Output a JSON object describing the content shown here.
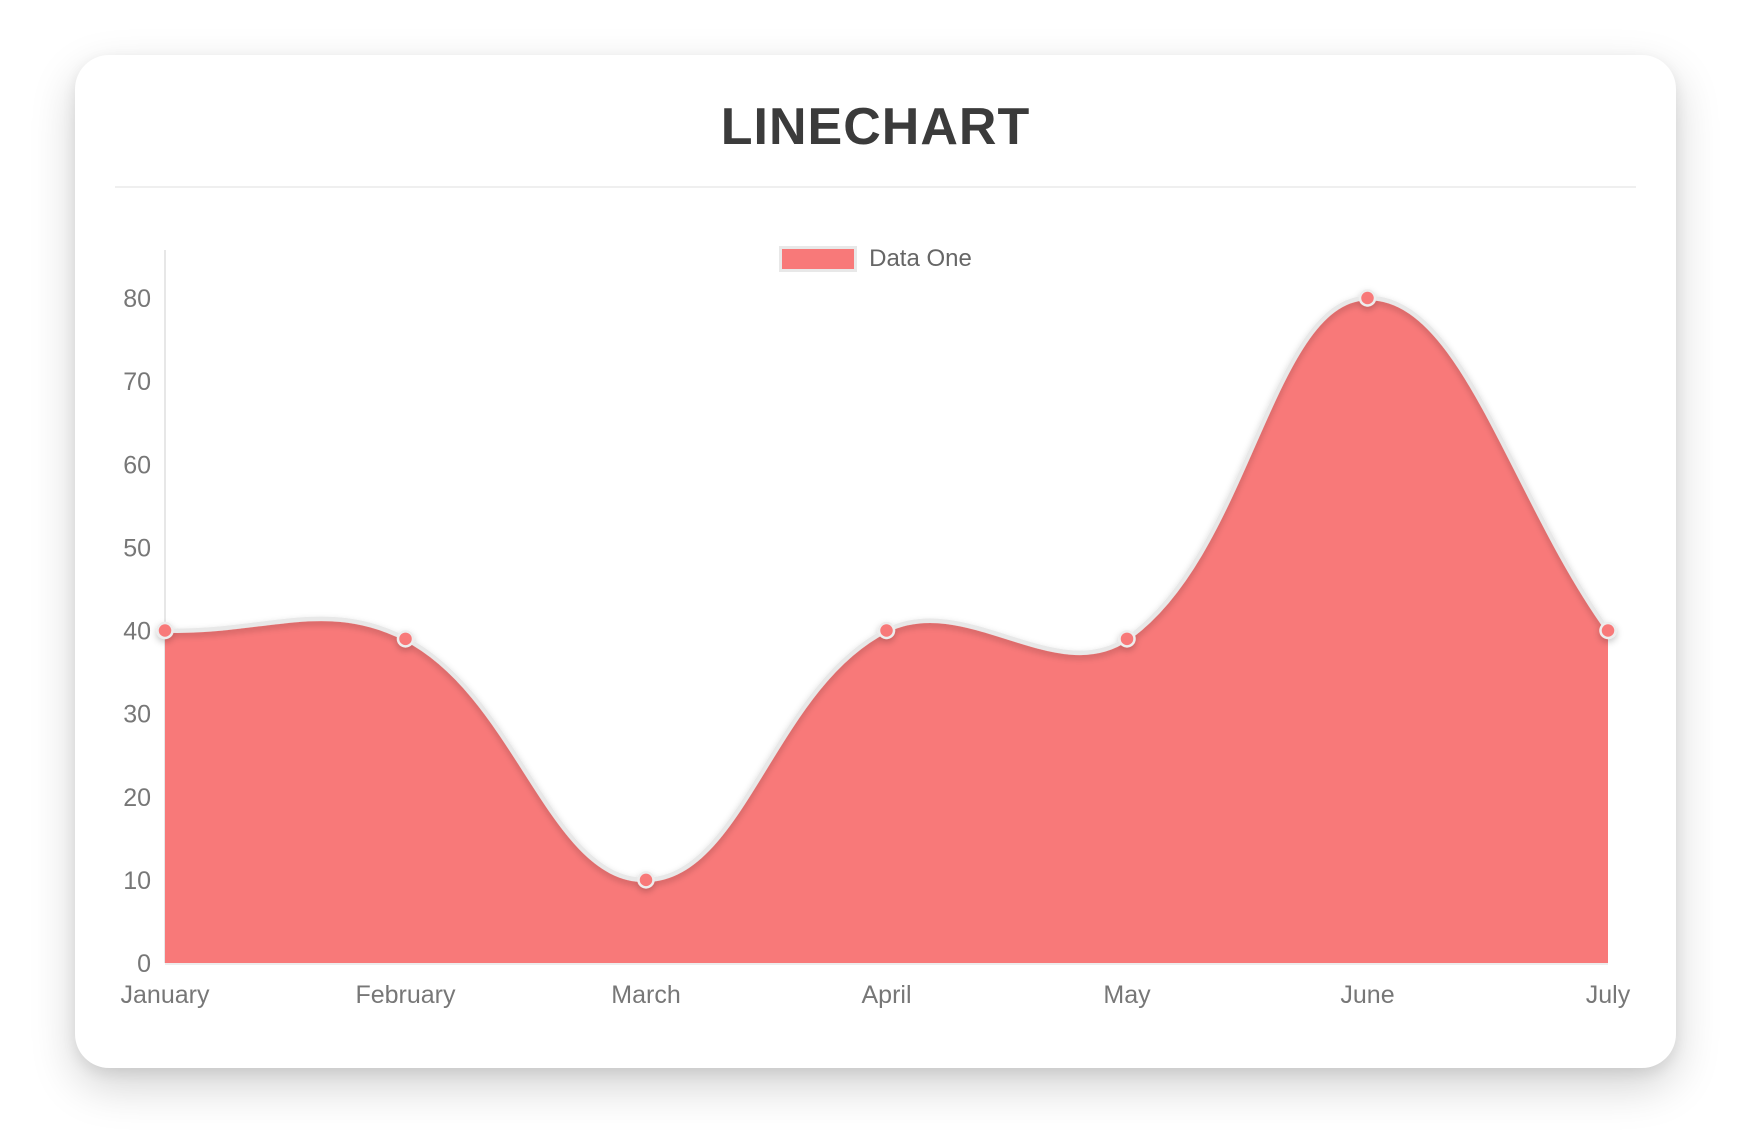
{
  "card": {
    "background": "#ffffff"
  },
  "chart_data": {
    "type": "line",
    "title": "LINECHART",
    "categories": [
      "January",
      "February",
      "March",
      "April",
      "May",
      "June",
      "July"
    ],
    "series": [
      {
        "name": "Data One",
        "values": [
          40,
          39,
          10,
          40,
          39,
          80,
          40
        ]
      }
    ],
    "ylim": [
      0,
      80
    ],
    "y_ticks": [
      0,
      10,
      20,
      30,
      40,
      50,
      60,
      70,
      80
    ],
    "legend_position": "top",
    "grid": false,
    "smooth": true,
    "line_tension": 0.4,
    "style": {
      "fill_color": "#f87979",
      "line_color": "#e8e8e8",
      "point_color": "#f87979",
      "point_border_color": "#ededed",
      "axis_color": "#e7e7e7",
      "tick_label_color": "#777777",
      "title_color": "#3b3b3b",
      "legend_label_color": "#666666",
      "divider_color": "#efefef"
    }
  }
}
